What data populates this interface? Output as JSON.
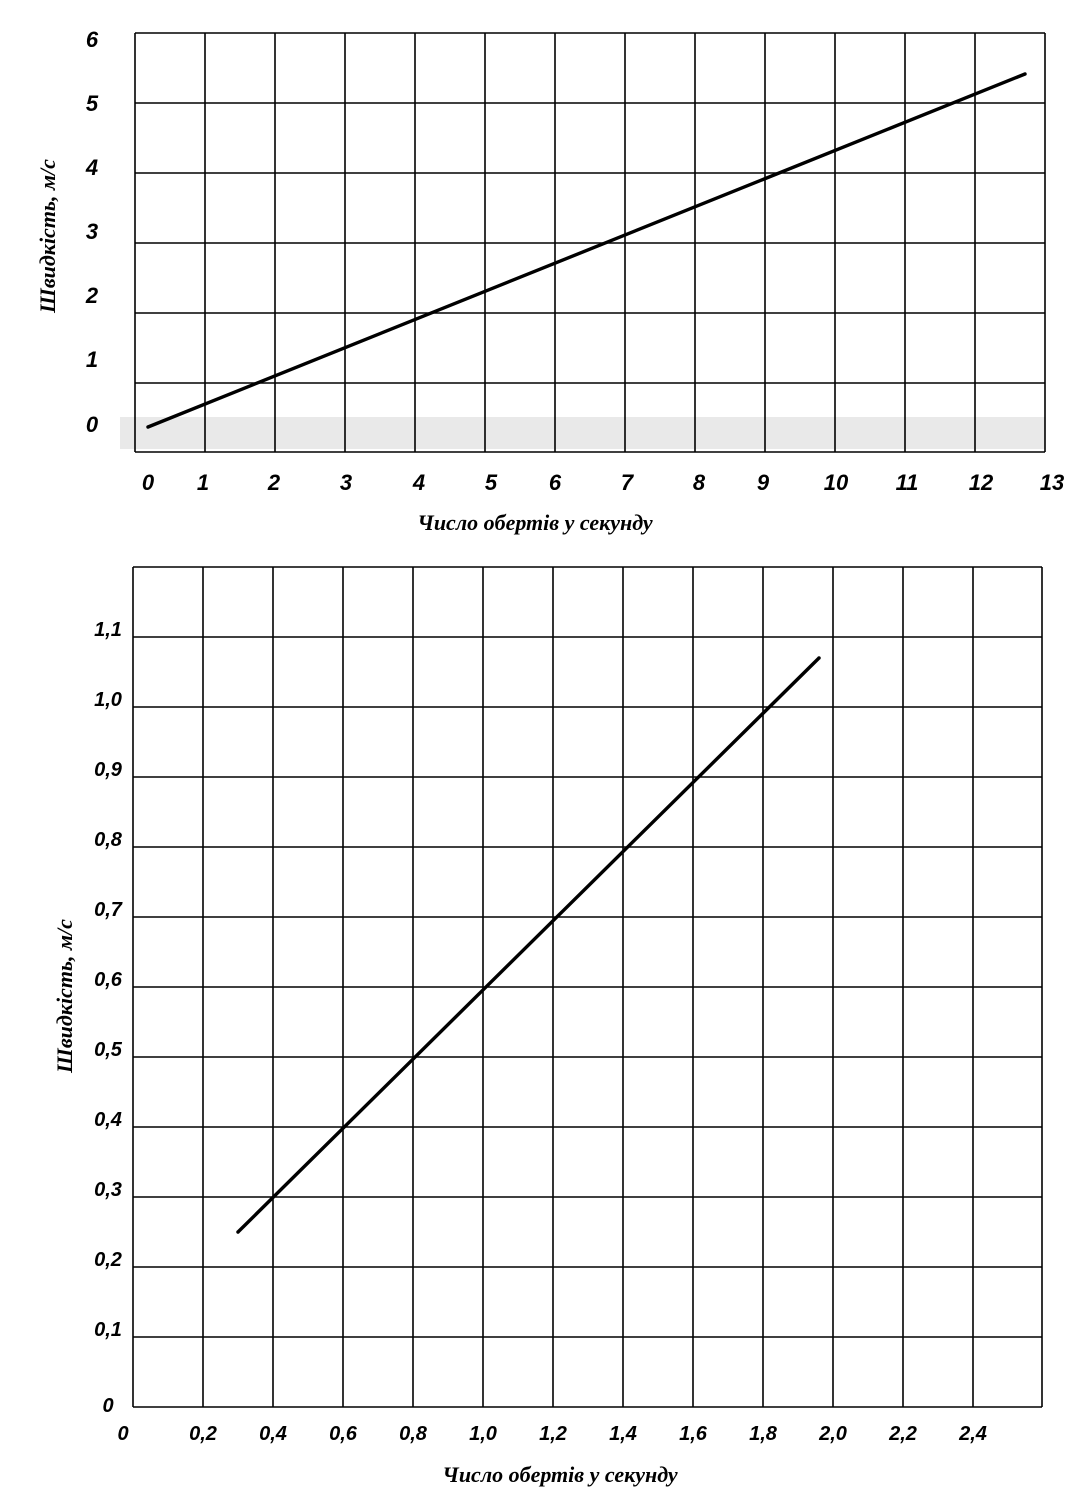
{
  "chart_data": [
    {
      "type": "line",
      "xlabel": "Число обертів у   секунду",
      "ylabel": "Швидкість, м/с",
      "xlim": [
        0,
        13
      ],
      "ylim": [
        0,
        6
      ],
      "x_ticks": [
        "0",
        "1",
        "2",
        "3",
        "4",
        "5",
        "6",
        "7",
        "8",
        "9",
        "10",
        "11",
        "12",
        "13"
      ],
      "y_ticks": [
        "0",
        "1",
        "2",
        "3",
        "4",
        "5",
        "6"
      ],
      "grid": true,
      "series": [
        {
          "x": [
            0,
            12.7
          ],
          "y": [
            0.05,
            5.5
          ]
        }
      ]
    },
    {
      "type": "line",
      "xlabel": "Число обертів у   секунду",
      "ylabel": "Швидкість, м/с",
      "xlim": [
        0,
        2.6
      ],
      "ylim": [
        0,
        1.2
      ],
      "x_ticks": [
        "0",
        "0,2",
        "0,4",
        "0,6",
        "0,8",
        "1,0",
        "1,2",
        "1,4",
        "1,6",
        "1,8",
        "2,0",
        "2,2",
        "2,4"
      ],
      "y_ticks": [
        "0",
        "0,1",
        "0,2",
        "0,3",
        "0,4",
        "0,5",
        "0,6",
        "0,7",
        "0,8",
        "0,9",
        "1,0",
        "1,1"
      ],
      "grid": true,
      "series": [
        {
          "x": [
            0.3,
            1.96
          ],
          "y": [
            0.25,
            1.07
          ]
        }
      ]
    }
  ]
}
